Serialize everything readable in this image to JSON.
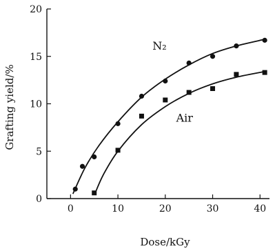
{
  "chart_data": {
    "type": "scatter",
    "xlabel": "Dose/kGy",
    "ylabel": "Grafting yield/%",
    "xlim": [
      -5,
      42
    ],
    "ylim": [
      0,
      20
    ],
    "xticks": [
      0,
      10,
      20,
      30,
      40
    ],
    "yticks": [
      0,
      5,
      10,
      15,
      20
    ],
    "grid": false,
    "series": [
      {
        "name": "N₂",
        "marker": "circle",
        "points": [
          {
            "x": 1,
            "y": 1.0
          },
          {
            "x": 2.5,
            "y": 3.4
          },
          {
            "x": 5,
            "y": 4.4
          },
          {
            "x": 10,
            "y": 7.9
          },
          {
            "x": 15,
            "y": 10.8
          },
          {
            "x": 20,
            "y": 12.4
          },
          {
            "x": 25,
            "y": 14.3
          },
          {
            "x": 30,
            "y": 15.0
          },
          {
            "x": 35,
            "y": 16.1
          },
          {
            "x": 41,
            "y": 16.7
          }
        ],
        "fit": [
          {
            "x": 0.5,
            "y": 0.5
          },
          {
            "x": 3,
            "y": 3.2
          },
          {
            "x": 6,
            "y": 5.6
          },
          {
            "x": 10,
            "y": 8.1
          },
          {
            "x": 15,
            "y": 10.7
          },
          {
            "x": 20,
            "y": 12.6
          },
          {
            "x": 25,
            "y": 14.1
          },
          {
            "x": 30,
            "y": 15.3
          },
          {
            "x": 35,
            "y": 16.1
          },
          {
            "x": 41,
            "y": 16.8
          }
        ]
      },
      {
        "name": "Air",
        "marker": "square",
        "points": [
          {
            "x": 5,
            "y": 0.6
          },
          {
            "x": 10,
            "y": 5.1
          },
          {
            "x": 15,
            "y": 8.7
          },
          {
            "x": 20,
            "y": 10.4
          },
          {
            "x": 25,
            "y": 11.2
          },
          {
            "x": 30,
            "y": 11.6
          },
          {
            "x": 35,
            "y": 13.1
          },
          {
            "x": 41,
            "y": 13.3
          }
        ],
        "fit": [
          {
            "x": 5.2,
            "y": 0.6
          },
          {
            "x": 7,
            "y": 2.6
          },
          {
            "x": 10,
            "y": 5.0
          },
          {
            "x": 15,
            "y": 7.8
          },
          {
            "x": 20,
            "y": 9.7
          },
          {
            "x": 25,
            "y": 11.1
          },
          {
            "x": 30,
            "y": 12.1
          },
          {
            "x": 35,
            "y": 12.8
          },
          {
            "x": 41,
            "y": 13.4
          }
        ]
      }
    ]
  }
}
